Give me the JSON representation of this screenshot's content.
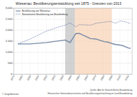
{
  "chart_data": {
    "type": "line",
    "title": "Wiesenau: Bevölkerungsentwicklung seit 1875 - Grenzen von 2013",
    "x": [
      1875,
      1890,
      1910,
      1925,
      1933,
      1939,
      1946,
      1950,
      1964,
      1971,
      1981,
      1985,
      1989,
      1990,
      1995,
      2000,
      2005,
      2010,
      2013
    ],
    "series": [
      {
        "name": "Bevölkerung von Wiesenau",
        "color": "#7388a3",
        "line_style": "solid",
        "values": [
          1378,
          1380,
          1440,
          1520,
          1560,
          1440,
          1850,
          1860,
          1620,
          1600,
          1480,
          1460,
          1420,
          1400,
          1350,
          1330,
          1280,
          1200,
          1180
        ]
      },
      {
        "name": "Normalisierte Bevölkerung von Brandenburg",
        "color": "#2f4f8f",
        "line_style": "dotted",
        "values": [
          1378,
          1600,
          1960,
          2150,
          2230,
          2340,
          2150,
          2260,
          2230,
          2320,
          2370,
          2390,
          2400,
          2380,
          2320,
          2420,
          2400,
          2340,
          2300
        ]
      }
    ],
    "spans": [
      {
        "from": 1933,
        "to": 1945,
        "color": "#b4b4b4"
      },
      {
        "from": 1945,
        "to": 1990,
        "color": "#f6c9a6"
      }
    ],
    "xlim": [
      1870,
      2015
    ],
    "xticks": [
      1870,
      1880,
      1890,
      1900,
      1910,
      1920,
      1930,
      1940,
      1950,
      1960,
      1970,
      1980,
      1990,
      2000,
      2010
    ],
    "ylim": [
      0,
      3000
    ],
    "yticks": [
      0,
      500,
      {
        "value": 1000,
        "label": "1,000"
      },
      {
        "value": 1500,
        "label": "1,500"
      },
      {
        "value": 2000,
        "label": "2,000"
      },
      {
        "value": 2500,
        "label": "2,500"
      },
      {
        "value": 3000,
        "label": "3,000"
      }
    ],
    "grid": true,
    "legend": "upper left",
    "source": "Quelle: Amt für Statistik Berlin-Brandenburg",
    "source2": "Historisches Gemeindeverzeichnis und Bevölkerungsentwicklung im Land Brandenburg",
    "author": "© Ziegelbrenner"
  }
}
